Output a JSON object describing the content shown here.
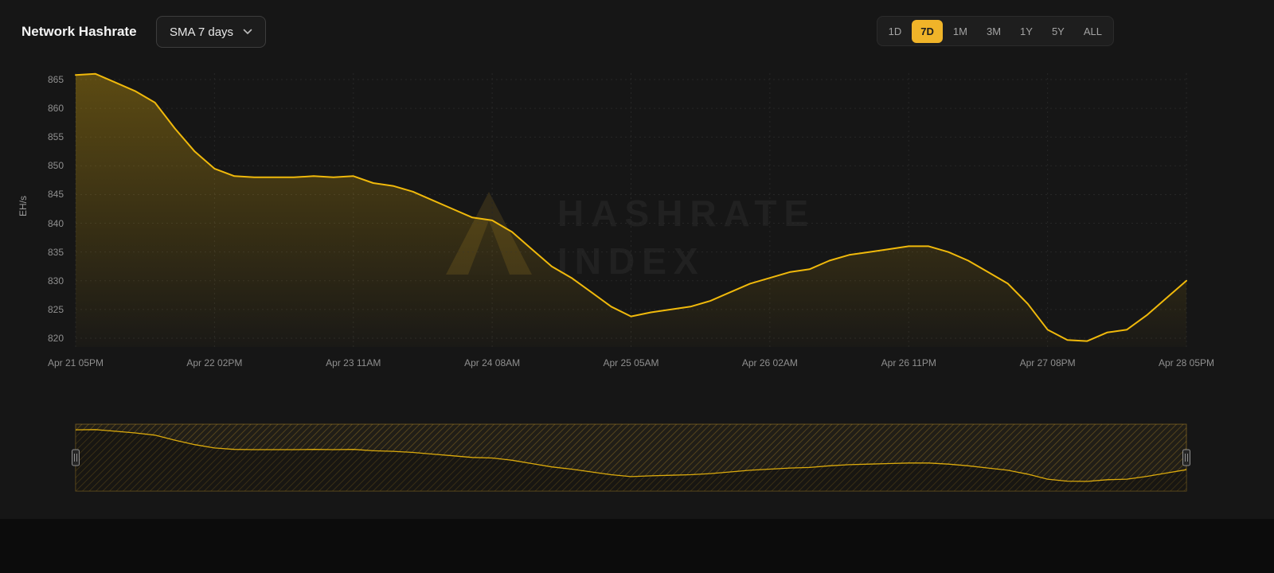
{
  "header": {
    "title": "Network Hashrate",
    "sma_dropdown": {
      "label": "SMA 7 days"
    },
    "range_buttons": [
      "1D",
      "7D",
      "1M",
      "3M",
      "1Y",
      "5Y",
      "ALL"
    ],
    "active_range": "7D"
  },
  "watermark": {
    "line1": "HASHRATE",
    "line2": "INDEX"
  },
  "colors": {
    "accent": "#f3ba2f",
    "line": "#f0b90b",
    "active_range_bg": "#f0b429",
    "active_range_text": "#1c1c1c",
    "background": "#0c0c0c",
    "card": "#161616",
    "grid": "#282828",
    "muted_text": "#9a9a9a"
  },
  "chart_data": {
    "type": "area",
    "title": "Network Hashrate",
    "ylabel": "EH/s",
    "grid": true,
    "legend": false,
    "ylim": [
      818,
      867.5
    ],
    "y_ticks": [
      820,
      825,
      830,
      835,
      840,
      845,
      850,
      855,
      860,
      865
    ],
    "x_tick_labels": [
      "Apr 21 05PM",
      "Apr 22 02PM",
      "Apr 23 11AM",
      "Apr 24 08AM",
      "Apr 25 05AM",
      "Apr 26 02AM",
      "Apr 26 11PM",
      "Apr 27 08PM",
      "Apr 28 05PM"
    ],
    "x_tick_indices": [
      0,
      7,
      14,
      21,
      28,
      35,
      42,
      49,
      56
    ],
    "values": [
      865.8,
      866.0,
      864.5,
      863.0,
      861.0,
      856.5,
      852.5,
      849.5,
      848.2,
      848.0,
      848.0,
      848.0,
      848.2,
      848.0,
      848.2,
      847.0,
      846.5,
      845.5,
      844.0,
      842.5,
      841.0,
      840.5,
      838.5,
      835.5,
      832.5,
      830.5,
      828.0,
      825.5,
      823.8,
      824.5,
      825.0,
      825.5,
      826.5,
      828.0,
      829.5,
      830.5,
      831.5,
      832.0,
      833.5,
      834.5,
      835.0,
      835.5,
      836.0,
      836.0,
      835.0,
      833.5,
      831.5,
      829.5,
      826.0,
      821.5,
      819.7,
      819.5,
      821.0,
      821.5,
      824.0,
      827.0,
      830.0
    ]
  },
  "navigator": {
    "left_handle": "drag-left",
    "right_handle": "drag-right"
  }
}
